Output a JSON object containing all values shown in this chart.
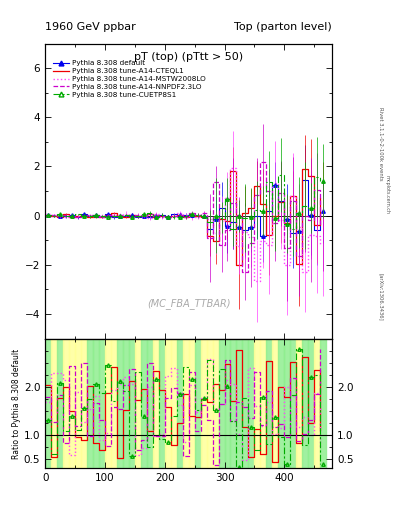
{
  "title_left": "1960 GeV ppbar",
  "title_right": "Top (parton level)",
  "plot_title": "pT (top) (pTtt > 50)",
  "watermark": "(MC_FBA_TTBAR)",
  "ylabel_ratio": "Ratio to Pythia 8.308 default",
  "xlim": [
    0,
    480
  ],
  "ylim_main": [
    -5,
    7
  ],
  "ylim_ratio": [
    0.3,
    3.0
  ],
  "ratio_yticks": [
    0.5,
    1.0,
    2.0
  ],
  "main_yticks": [
    -4,
    -2,
    0,
    2,
    4,
    6
  ],
  "series": [
    {
      "label": "Pythia 8.308 default",
      "color": "#0000ee",
      "linestyle": "solid",
      "marker": "^",
      "filled_marker": true,
      "linewidth": 0.8
    },
    {
      "label": "Pythia 8.308 tune-A14-CTEQL1",
      "color": "#ee0000",
      "linestyle": "solid",
      "marker": null,
      "linewidth": 0.9
    },
    {
      "label": "Pythia 8.308 tune-A14-MSTW2008LO",
      "color": "#ff44ff",
      "linestyle": "dotted",
      "marker": null,
      "linewidth": 1.0
    },
    {
      "label": "Pythia 8.308 tune-A14-NNPDF2.3LO",
      "color": "#cc00cc",
      "linestyle": "dashed",
      "marker": null,
      "linewidth": 0.9
    },
    {
      "label": "Pythia 8.308 tune-CUETP8S1",
      "color": "#00aa00",
      "linestyle": "dashed",
      "marker": "^",
      "filled_marker": false,
      "linewidth": 0.8
    }
  ],
  "ratio_band_yellow": "#ffff99",
  "ratio_band_green": "#90ee90",
  "right_label_top": "Rivet 3.1.1-0-2-100k events",
  "right_label_mid": "mcplots.cern.ch",
  "right_label_bot": "[arXiv:1306.3436]"
}
